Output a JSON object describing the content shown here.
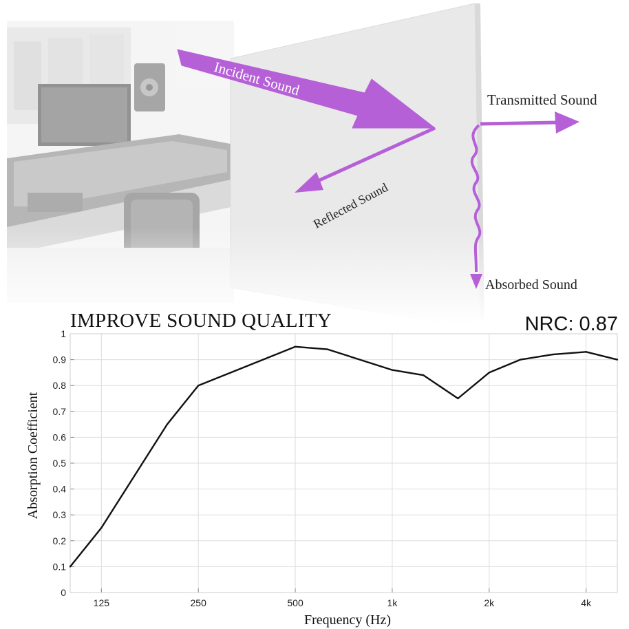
{
  "illustration": {
    "labels": {
      "incident": "Incident Sound",
      "reflected": "Reflected Sound",
      "transmitted": "Transmitted Sound",
      "absorbed": "Absorbed Sound"
    },
    "arrow_color": "#b660d8"
  },
  "header": {
    "title": "IMPROVE SOUND QUALITY",
    "nrc": "NRC: 0.87"
  },
  "chart_data": {
    "type": "line",
    "title": "IMPROVE SOUND QUALITY",
    "xlabel": "Frequency (Hz)",
    "ylabel": "Absorption Coefficient",
    "x_scale": "log2",
    "xlim": [
      100,
      5000
    ],
    "ylim": [
      0,
      1
    ],
    "grid": true,
    "x_ticks": [
      {
        "value": 125,
        "label": "125"
      },
      {
        "value": 250,
        "label": "250"
      },
      {
        "value": 500,
        "label": "500"
      },
      {
        "value": 1000,
        "label": "1k"
      },
      {
        "value": 2000,
        "label": "2k"
      },
      {
        "value": 4000,
        "label": "4k"
      }
    ],
    "y_ticks": [
      {
        "value": 0,
        "label": "0"
      },
      {
        "value": 0.1,
        "label": "0.1"
      },
      {
        "value": 0.2,
        "label": "0.2"
      },
      {
        "value": 0.3,
        "label": "0.3"
      },
      {
        "value": 0.4,
        "label": "0.4"
      },
      {
        "value": 0.5,
        "label": "0.5"
      },
      {
        "value": 0.6,
        "label": "0.6"
      },
      {
        "value": 0.7,
        "label": "0.7"
      },
      {
        "value": 0.8,
        "label": "0.8"
      },
      {
        "value": 0.9,
        "label": "0.9"
      },
      {
        "value": 1,
        "label": "1"
      }
    ],
    "series": [
      {
        "color": "#111111",
        "x": [
          100,
          125,
          200,
          250,
          500,
          630,
          1000,
          1250,
          1600,
          2000,
          2500,
          3150,
          4000,
          5000
        ],
        "y": [
          0.1,
          0.25,
          0.65,
          0.8,
          0.95,
          0.94,
          0.86,
          0.84,
          0.75,
          0.85,
          0.9,
          0.92,
          0.93,
          0.9
        ]
      }
    ]
  }
}
